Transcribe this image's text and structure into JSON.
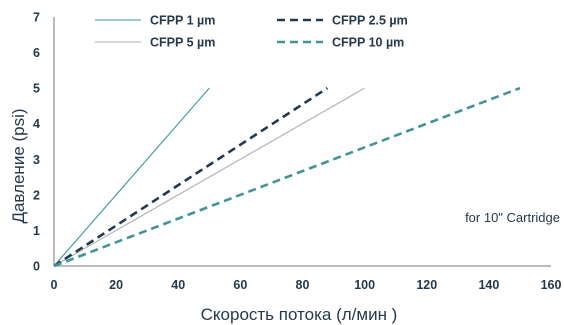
{
  "chart_data": {
    "type": "line",
    "xlabel": "Скорость потока (л/мин )",
    "ylabel": "Давление (psi)",
    "xlim": [
      0,
      160
    ],
    "ylim": [
      0,
      7
    ],
    "x_ticks": [
      0,
      20,
      40,
      60,
      80,
      100,
      120,
      140,
      160
    ],
    "y_ticks": [
      0,
      1,
      2,
      3,
      4,
      5,
      6,
      7
    ],
    "grid": false,
    "legend_position": "top",
    "annotation": "for 10\" Cartridge",
    "series": [
      {
        "name": "CFPP 1 µm",
        "x": [
          0,
          50
        ],
        "y": [
          0,
          5
        ],
        "color": "#3a9a9c",
        "style": "solid"
      },
      {
        "name": "CFPP 5 µm",
        "x": [
          0,
          100
        ],
        "y": [
          0,
          5
        ],
        "color": "#b0b0b0",
        "style": "solid"
      },
      {
        "name": "CFPP 2.5 µm",
        "x": [
          0,
          88
        ],
        "y": [
          0,
          5
        ],
        "color": "#1e3a55",
        "style": "dashed"
      },
      {
        "name": "CFPP 10 µm",
        "x": [
          0,
          150
        ],
        "y": [
          0,
          5
        ],
        "color": "#3f9698",
        "style": "dashed"
      }
    ]
  }
}
